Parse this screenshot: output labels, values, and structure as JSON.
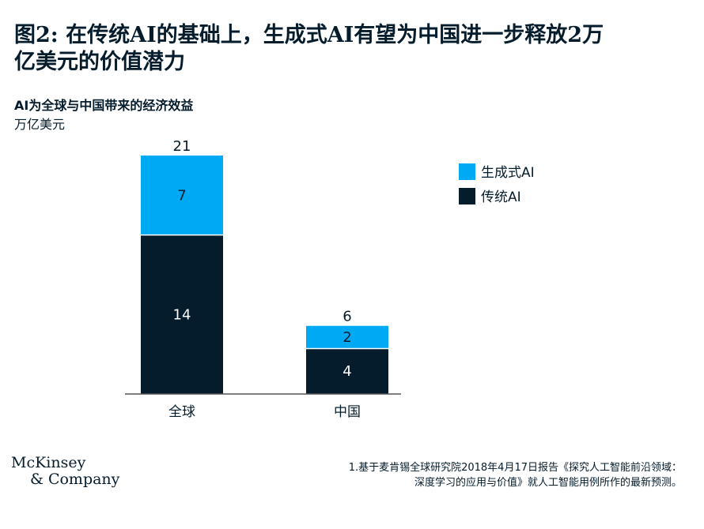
{
  "title": {
    "line1": "图2: 在传统AI的基础上，生成式AI有望为中国进一步释放2万",
    "line2": "亿美元的价值潜力"
  },
  "subtitle": "AI为全球与中国带来的经济效益",
  "unit": "万亿美元",
  "logo": {
    "line1": "McKinsey",
    "line2": "& Company"
  },
  "footnote": {
    "line1": "1.基于麦肯锡全球研究院2018年4月17日报告《探究人工智能前沿领域：",
    "line2": "深度学习的应用与价值》就人工智能用例所作的最新预测。"
  },
  "chart_data": {
    "type": "bar",
    "stacked": true,
    "categories": [
      "全球",
      "中国"
    ],
    "series": [
      {
        "name": "传统AI",
        "values": [
          14,
          4
        ],
        "color": "#051c2c"
      },
      {
        "name": "生成式AI",
        "values": [
          7,
          2
        ],
        "color": "#00a9f4"
      }
    ],
    "totals": [
      21,
      6
    ],
    "ylim": [
      0,
      21
    ],
    "grid": false,
    "legend": {
      "position": "top-right",
      "order": [
        "生成式AI",
        "传统AI"
      ]
    }
  }
}
